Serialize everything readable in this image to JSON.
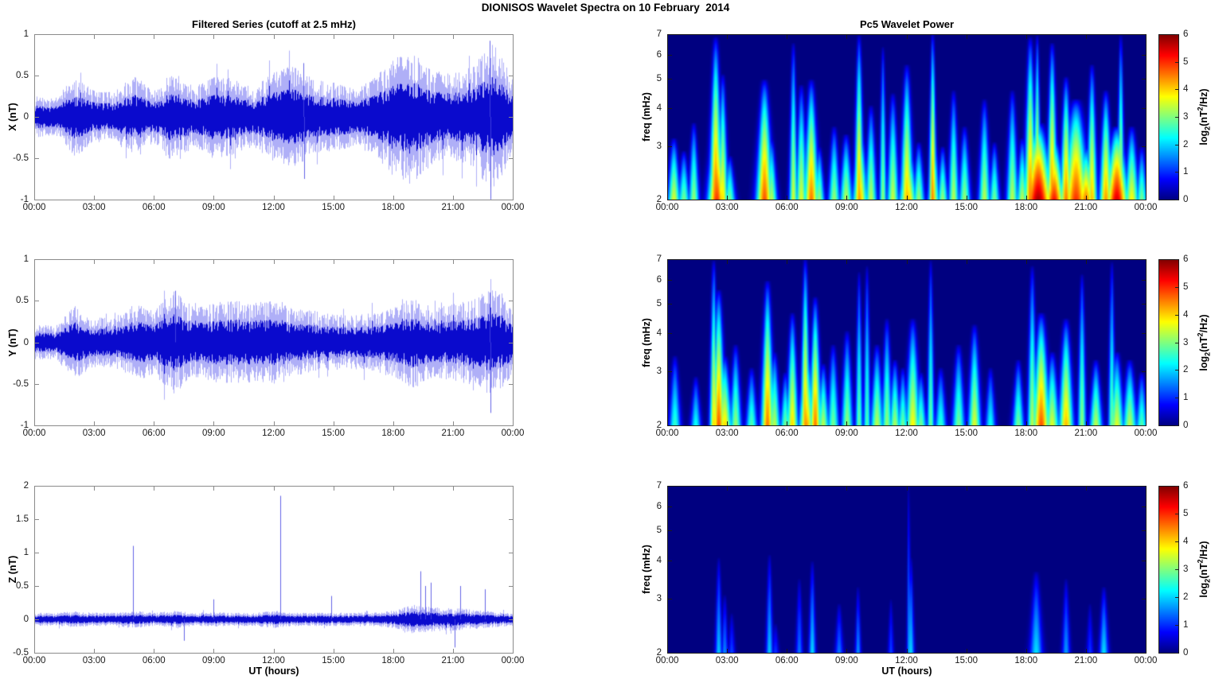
{
  "figure_title": "DIONISOS Wavelet Spectra on 10 February  2014",
  "left_column_title": "Filtered Series (cutoff at 2.5 mHz)",
  "right_column_title": "Pc5 Wavelet Power",
  "x_axis": {
    "label": "UT (hours)",
    "ticks": [
      "00:00",
      "03:00",
      "06:00",
      "09:00",
      "12:00",
      "15:00",
      "18:00",
      "21:00",
      "00:00"
    ],
    "range_hours": [
      0,
      24
    ]
  },
  "colorbar": {
    "ticks": [
      6,
      5,
      4,
      3,
      2,
      1,
      0
    ],
    "range_log2_power": [
      0,
      6
    ],
    "colormap": "jet",
    "label_prefix": "log",
    "label_sub": "2",
    "label_mid": "(nT",
    "label_sup": "2",
    "label_suffix": "/Hz)"
  },
  "colors": {
    "trace_blue": "#0a0acd",
    "trace_blue_light": "rgba(110,110,240,0.55)",
    "spectrogram_background": "#00007f",
    "series_axis": "#8a8a8a",
    "spectrogram_axis": "#1a1a1a"
  },
  "chart_data": {
    "time_series": [
      {
        "name": "X component filtered series",
        "type": "line",
        "ylabel": "X (nT)",
        "ylim": [
          -1,
          1
        ],
        "yticks": [
          1,
          0.5,
          0,
          -0.5,
          -1
        ],
        "x_hours_range": [
          0,
          24
        ],
        "envelope_hourly_amplitude_nT": [
          0.25,
          0.22,
          0.48,
          0.32,
          0.3,
          0.52,
          0.32,
          0.58,
          0.36,
          0.52,
          0.46,
          0.36,
          0.55,
          0.62,
          0.45,
          0.42,
          0.36,
          0.46,
          0.72,
          0.8,
          0.56,
          0.52,
          0.62,
          0.92,
          0.45
        ],
        "spikes": [
          {
            "t_hours": 13.5,
            "value_nT": 0.65
          },
          {
            "t_hours": 13.55,
            "value_nT": -0.75
          },
          {
            "t_hours": 22.85,
            "value_nT": 0.92
          },
          {
            "t_hours": 22.9,
            "value_nT": -1.0
          }
        ]
      },
      {
        "name": "Y component filtered series",
        "type": "line",
        "ylabel": "Y (nT)",
        "ylim": [
          -1,
          1
        ],
        "yticks": [
          1,
          0.5,
          0,
          -0.5,
          -1
        ],
        "x_hours_range": [
          0,
          24
        ],
        "envelope_hourly_amplitude_nT": [
          0.22,
          0.2,
          0.44,
          0.3,
          0.3,
          0.46,
          0.4,
          0.62,
          0.42,
          0.48,
          0.5,
          0.48,
          0.5,
          0.4,
          0.38,
          0.35,
          0.32,
          0.36,
          0.42,
          0.56,
          0.42,
          0.46,
          0.52,
          0.66,
          0.4
        ],
        "spikes": [
          {
            "t_hours": 7.05,
            "value_nT": 0.62
          },
          {
            "t_hours": 22.85,
            "value_nT": 0.6
          },
          {
            "t_hours": 22.9,
            "value_nT": -0.85
          }
        ]
      },
      {
        "name": "Z component filtered series",
        "type": "line",
        "ylabel": "Z (nT)",
        "ylim": [
          -0.5,
          2
        ],
        "yticks": [
          2,
          1.5,
          1,
          0.5,
          0,
          -0.5
        ],
        "x_hours_range": [
          0,
          24
        ],
        "envelope_hourly_amplitude_nT": [
          0.1,
          0.1,
          0.12,
          0.1,
          0.1,
          0.13,
          0.1,
          0.13,
          0.1,
          0.11,
          0.1,
          0.1,
          0.13,
          0.1,
          0.1,
          0.1,
          0.1,
          0.1,
          0.13,
          0.22,
          0.18,
          0.17,
          0.15,
          0.12,
          0.1
        ],
        "spikes": [
          {
            "t_hours": 4.95,
            "value_nT": 1.1
          },
          {
            "t_hours": 12.35,
            "value_nT": 1.85
          },
          {
            "t_hours": 7.5,
            "value_nT": -0.32
          },
          {
            "t_hours": 9.0,
            "value_nT": 0.3
          },
          {
            "t_hours": 14.9,
            "value_nT": 0.35
          },
          {
            "t_hours": 19.35,
            "value_nT": 0.72
          },
          {
            "t_hours": 19.6,
            "value_nT": 0.5
          },
          {
            "t_hours": 19.9,
            "value_nT": 0.55
          },
          {
            "t_hours": 21.1,
            "value_nT": -0.42
          },
          {
            "t_hours": 21.35,
            "value_nT": 0.5
          },
          {
            "t_hours": 22.6,
            "value_nT": 0.45
          }
        ]
      }
    ],
    "spectrograms": [
      {
        "name": "X component Pc5 wavelet power",
        "type": "heatmap",
        "ylabel": "freq (mHz)",
        "ylim_mHz": [
          2,
          7
        ],
        "yticks": [
          7,
          6,
          5,
          4,
          3,
          2
        ],
        "yscale": "log",
        "power_range_log2": [
          0,
          6
        ],
        "event_format": "[t_hours, tip_freq_mHz, time_sigma_hours, peak_log2_power]",
        "events": [
          [
            0.3,
            3.2,
            0.22,
            3.6
          ],
          [
            0.8,
            2.9,
            0.2,
            3.0
          ],
          [
            1.3,
            3.6,
            0.18,
            3.2
          ],
          [
            2.4,
            6.9,
            0.22,
            4.8
          ],
          [
            2.45,
            4.0,
            0.3,
            5.0
          ],
          [
            2.75,
            5.2,
            0.18,
            4.0
          ],
          [
            3.1,
            2.8,
            0.2,
            3.0
          ],
          [
            4.85,
            5.0,
            0.28,
            4.8
          ],
          [
            5.2,
            3.2,
            0.2,
            3.4
          ],
          [
            6.3,
            6.6,
            0.14,
            3.6
          ],
          [
            6.7,
            4.8,
            0.2,
            3.6
          ],
          [
            7.2,
            5.0,
            0.25,
            4.6
          ],
          [
            7.6,
            3.0,
            0.18,
            3.2
          ],
          [
            8.35,
            3.5,
            0.2,
            3.2
          ],
          [
            8.95,
            3.3,
            0.22,
            3.4
          ],
          [
            9.6,
            7.0,
            0.16,
            4.4
          ],
          [
            9.65,
            3.6,
            0.25,
            4.2
          ],
          [
            10.2,
            4.1,
            0.2,
            3.4
          ],
          [
            10.8,
            6.4,
            0.12,
            3.2
          ],
          [
            11.3,
            4.5,
            0.2,
            3.5
          ],
          [
            12.0,
            5.6,
            0.22,
            4.2
          ],
          [
            12.05,
            3.2,
            0.3,
            4.2
          ],
          [
            12.6,
            3.1,
            0.2,
            3.2
          ],
          [
            13.3,
            7.1,
            0.13,
            4.6
          ],
          [
            13.35,
            3.4,
            0.2,
            3.6
          ],
          [
            13.8,
            3.0,
            0.18,
            3.2
          ],
          [
            14.35,
            4.6,
            0.18,
            3.4
          ],
          [
            14.9,
            3.5,
            0.2,
            3.2
          ],
          [
            15.9,
            4.3,
            0.2,
            3.4
          ],
          [
            16.4,
            3.1,
            0.18,
            3.0
          ],
          [
            17.3,
            4.6,
            0.2,
            3.4
          ],
          [
            17.8,
            3.2,
            0.2,
            3.4
          ],
          [
            18.2,
            6.9,
            0.2,
            4.6
          ],
          [
            18.55,
            7.0,
            0.12,
            4.2
          ],
          [
            18.6,
            3.6,
            0.5,
            5.8
          ],
          [
            19.3,
            6.6,
            0.18,
            4.6
          ],
          [
            19.4,
            3.2,
            0.35,
            5.2
          ],
          [
            20.0,
            5.1,
            0.2,
            4.6
          ],
          [
            20.5,
            4.3,
            0.45,
            5.0
          ],
          [
            21.0,
            3.0,
            0.3,
            4.6
          ],
          [
            21.3,
            5.6,
            0.18,
            4.2
          ],
          [
            22.0,
            4.6,
            0.22,
            4.4
          ],
          [
            22.55,
            3.5,
            0.4,
            5.5
          ],
          [
            22.75,
            7.0,
            0.12,
            3.8
          ],
          [
            23.3,
            3.5,
            0.25,
            3.8
          ],
          [
            23.8,
            3.0,
            0.2,
            3.0
          ]
        ]
      },
      {
        "name": "Y component Pc5 wavelet power",
        "type": "heatmap",
        "ylabel": "freq (mHz)",
        "ylim_mHz": [
          2,
          7
        ],
        "yticks": [
          7,
          6,
          5,
          4,
          3,
          2
        ],
        "yscale": "log",
        "power_range_log2": [
          0,
          6
        ],
        "event_format": "[t_hours, tip_freq_mHz, time_sigma_hours, peak_log2_power]",
        "events": [
          [
            0.35,
            3.4,
            0.2,
            2.6
          ],
          [
            1.4,
            2.9,
            0.18,
            2.4
          ],
          [
            2.3,
            7.0,
            0.14,
            4.0
          ],
          [
            2.55,
            5.6,
            0.22,
            4.8
          ],
          [
            2.85,
            3.4,
            0.25,
            4.0
          ],
          [
            3.4,
            3.7,
            0.2,
            3.2
          ],
          [
            4.2,
            3.1,
            0.2,
            2.8
          ],
          [
            5.0,
            6.0,
            0.22,
            4.6
          ],
          [
            5.35,
            3.5,
            0.2,
            3.4
          ],
          [
            5.9,
            3.0,
            0.18,
            3.0
          ],
          [
            6.25,
            4.7,
            0.2,
            4.0
          ],
          [
            6.9,
            7.1,
            0.16,
            4.4
          ],
          [
            6.95,
            3.7,
            0.25,
            4.4
          ],
          [
            7.4,
            5.3,
            0.2,
            4.6
          ],
          [
            7.8,
            3.2,
            0.2,
            3.4
          ],
          [
            8.3,
            3.7,
            0.2,
            3.0
          ],
          [
            9.0,
            4.1,
            0.2,
            3.2
          ],
          [
            9.6,
            6.4,
            0.12,
            3.0
          ],
          [
            10.0,
            6.7,
            0.12,
            2.8
          ],
          [
            10.5,
            3.7,
            0.22,
            3.4
          ],
          [
            11.0,
            4.5,
            0.18,
            3.2
          ],
          [
            11.4,
            3.3,
            0.2,
            3.3
          ],
          [
            11.8,
            3.1,
            0.18,
            3.0
          ],
          [
            12.3,
            4.5,
            0.25,
            3.8
          ],
          [
            12.7,
            3.0,
            0.2,
            3.0
          ],
          [
            13.2,
            7.0,
            0.12,
            3.0
          ],
          [
            13.7,
            3.1,
            0.2,
            2.6
          ],
          [
            14.6,
            3.7,
            0.22,
            3.0
          ],
          [
            15.4,
            4.3,
            0.22,
            3.6
          ],
          [
            16.2,
            3.1,
            0.18,
            2.4
          ],
          [
            17.6,
            3.3,
            0.2,
            3.0
          ],
          [
            18.3,
            6.7,
            0.16,
            3.4
          ],
          [
            18.75,
            4.7,
            0.3,
            4.8
          ],
          [
            19.3,
            3.5,
            0.25,
            3.6
          ],
          [
            20.0,
            4.5,
            0.25,
            4.2
          ],
          [
            20.8,
            6.3,
            0.14,
            3.2
          ],
          [
            21.5,
            3.3,
            0.22,
            3.4
          ],
          [
            22.3,
            6.9,
            0.12,
            3.0
          ],
          [
            22.55,
            3.5,
            0.25,
            3.6
          ],
          [
            23.2,
            3.3,
            0.25,
            3.4
          ],
          [
            23.8,
            3.0,
            0.2,
            2.8
          ]
        ]
      },
      {
        "name": "Z component Pc5 wavelet power",
        "type": "heatmap",
        "ylabel": "freq (mHz)",
        "ylim_mHz": [
          2,
          7
        ],
        "yticks": [
          7,
          6,
          5,
          4,
          3,
          2
        ],
        "yscale": "log",
        "power_range_log2": [
          0,
          6
        ],
        "event_format": "[t_hours, tip_freq_mHz, time_sigma_hours, peak_log2_power]",
        "events": [
          [
            2.55,
            4.1,
            0.12,
            2.0
          ],
          [
            2.85,
            3.1,
            0.12,
            1.6
          ],
          [
            3.2,
            2.7,
            0.12,
            1.2
          ],
          [
            5.1,
            4.2,
            0.12,
            2.0
          ],
          [
            5.4,
            2.5,
            0.12,
            1.1
          ],
          [
            6.6,
            3.5,
            0.12,
            1.5
          ],
          [
            7.25,
            4.0,
            0.12,
            2.1
          ],
          [
            8.6,
            2.9,
            0.14,
            1.5
          ],
          [
            9.55,
            3.3,
            0.1,
            1.7
          ],
          [
            11.2,
            3.0,
            0.1,
            1.2
          ],
          [
            12.1,
            7.1,
            0.07,
            1.7
          ],
          [
            12.2,
            4.1,
            0.12,
            2.1
          ],
          [
            18.5,
            3.7,
            0.22,
            2.1
          ],
          [
            20.0,
            3.5,
            0.14,
            1.7
          ],
          [
            21.2,
            2.9,
            0.12,
            1.1
          ],
          [
            21.9,
            3.3,
            0.16,
            2.1
          ]
        ]
      }
    ]
  }
}
